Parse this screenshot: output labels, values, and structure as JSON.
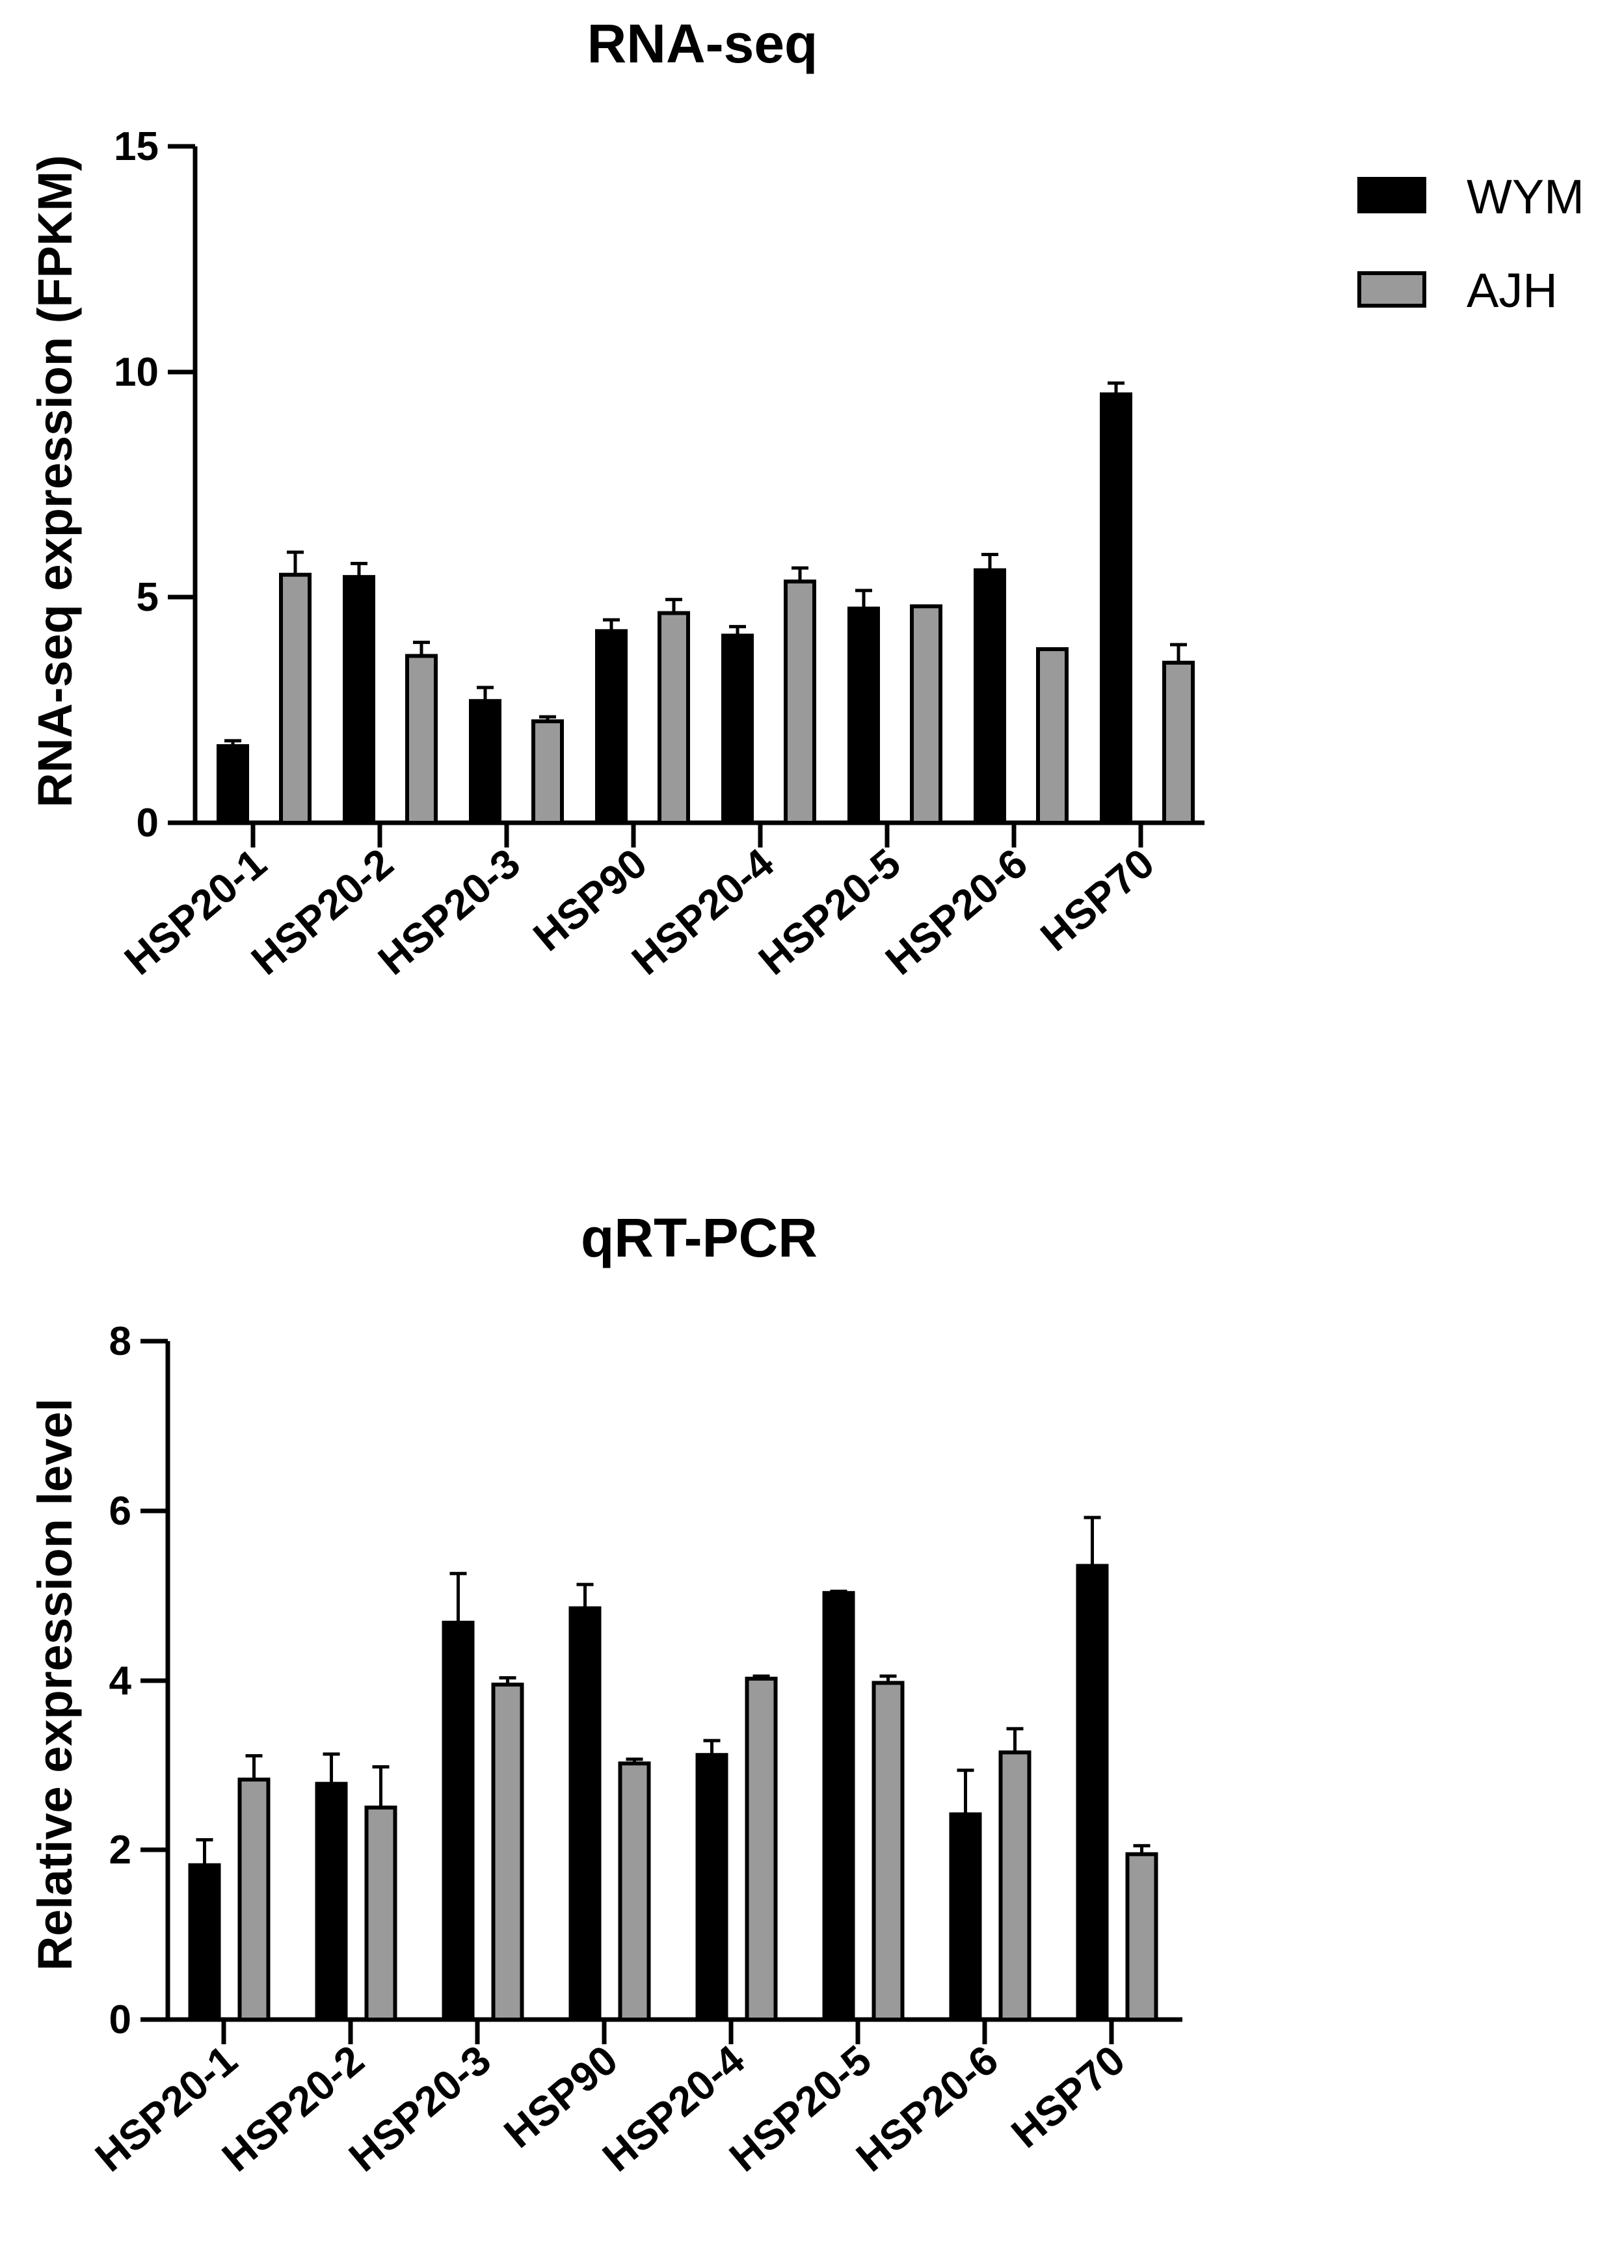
{
  "legend": [
    {
      "name": "WYM",
      "color": "#000000"
    },
    {
      "name": "AJH",
      "color": "#9a9a9a"
    }
  ],
  "chart_data": [
    {
      "type": "bar",
      "title": "RNA-seq",
      "ylabel": "RNA-seq expression (FPKM)",
      "xlabel": "",
      "ylim": [
        0,
        15
      ],
      "yticks": [
        0,
        5,
        10,
        15
      ],
      "categories": [
        "HSP20-1",
        "HSP20-2",
        "HSP20-3",
        "HSP90",
        "HSP20-4",
        "HSP20-5",
        "HSP20-6",
        "HSP70"
      ],
      "series": [
        {
          "name": "WYM",
          "values": [
            1.7,
            5.45,
            2.7,
            4.25,
            4.15,
            4.75,
            5.6,
            9.5
          ],
          "errors": [
            0.12,
            0.3,
            0.3,
            0.25,
            0.2,
            0.4,
            0.35,
            0.25
          ]
        },
        {
          "name": "AJH",
          "values": [
            5.5,
            3.7,
            2.25,
            4.65,
            5.35,
            4.8,
            3.85,
            3.55
          ],
          "errors": [
            0.5,
            0.3,
            0.1,
            0.3,
            0.3,
            0.0,
            0.0,
            0.4
          ]
        }
      ]
    },
    {
      "type": "bar",
      "title": "qRT-PCR",
      "ylabel": "Relative expression level",
      "xlabel": "",
      "ylim": [
        0,
        8
      ],
      "yticks": [
        0,
        2,
        4,
        6,
        8
      ],
      "categories": [
        "HSP20-1",
        "HSP20-2",
        "HSP20-3",
        "HSP90",
        "HSP20-4",
        "HSP20-5",
        "HSP20-6",
        "HSP70"
      ],
      "series": [
        {
          "name": "WYM",
          "values": [
            1.82,
            2.78,
            4.68,
            4.85,
            3.12,
            5.03,
            2.42,
            5.35
          ],
          "errors": [
            0.3,
            0.35,
            0.58,
            0.28,
            0.17,
            0.02,
            0.52,
            0.57
          ]
        },
        {
          "name": "AJH",
          "values": [
            2.83,
            2.5,
            3.95,
            3.02,
            4.02,
            3.97,
            3.15,
            1.95
          ],
          "errors": [
            0.28,
            0.48,
            0.08,
            0.05,
            0.03,
            0.08,
            0.28,
            0.1
          ]
        }
      ]
    }
  ]
}
